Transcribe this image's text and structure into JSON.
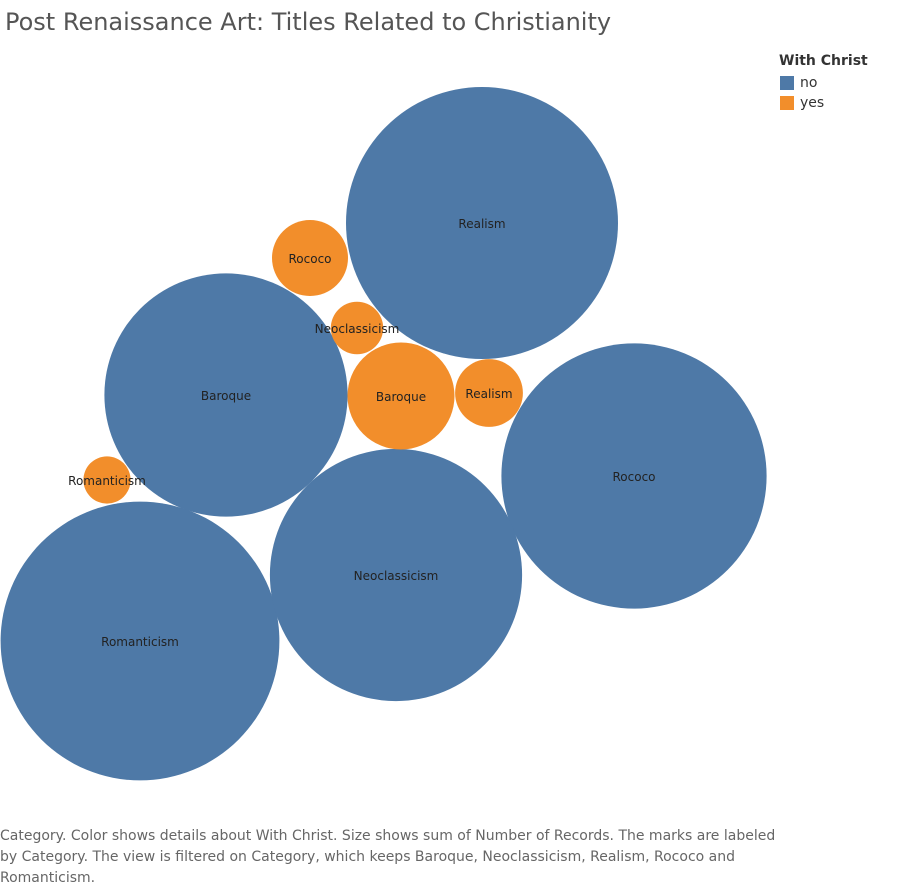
{
  "chart_data": {
    "type": "bubble",
    "title": "Post Renaissance Art: Titles Related to Christianity",
    "legend": {
      "title": "With Christ",
      "placement": "top-right",
      "entries": [
        {
          "label": "no",
          "color": "#4e79a7"
        },
        {
          "label": "yes",
          "color": "#f28e2b"
        }
      ]
    },
    "size_measure": "sum of Number of Records (relative)",
    "bubbles": [
      {
        "category": "Realism",
        "with_christ": "no",
        "value": 100
      },
      {
        "category": "Rococo",
        "with_christ": "no",
        "value": 95
      },
      {
        "category": "Romanticism",
        "with_christ": "no",
        "value": 105
      },
      {
        "category": "Neoclassicism",
        "with_christ": "no",
        "value": 86
      },
      {
        "category": "Baroque",
        "with_christ": "no",
        "value": 80
      },
      {
        "category": "Baroque",
        "with_christ": "yes",
        "value": 15.5
      },
      {
        "category": "Rococo",
        "with_christ": "yes",
        "value": 7.8
      },
      {
        "category": "Realism",
        "with_christ": "yes",
        "value": 6.2
      },
      {
        "category": "Neoclassicism",
        "with_christ": "yes",
        "value": 3.7
      },
      {
        "category": "Romanticism",
        "with_christ": "yes",
        "value": 3.0
      }
    ],
    "caption": "Category.  Color shows details about With Christ.  Size shows sum of Number of Records.  The marks are labeled by Category. The view is filtered on Category, which keeps Baroque, Neoclassicism, Realism, Rococo and Romanticism."
  }
}
